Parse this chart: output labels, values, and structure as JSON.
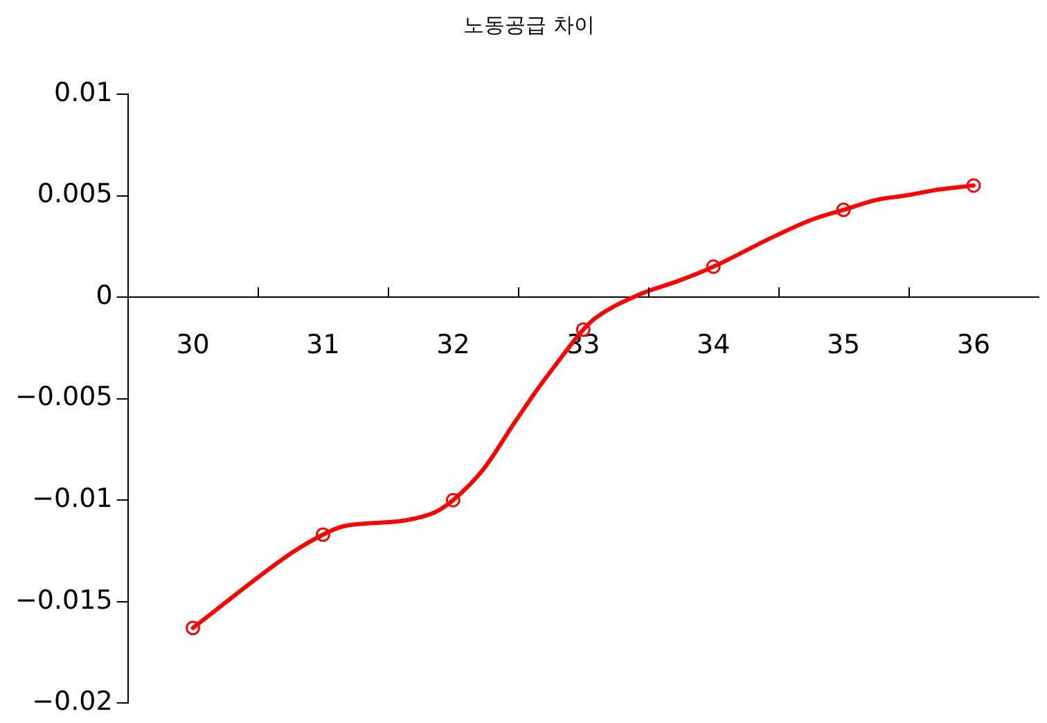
{
  "chart_data": {
    "type": "line",
    "title": "노동공급 차이",
    "xlim": [
      29.5,
      36.5
    ],
    "xticks": [
      30,
      {
        "value": 30.5,
        "label": null
      },
      31,
      {
        "value": 31.5,
        "label": null
      },
      32,
      {
        "value": 32.5,
        "label": null
      },
      33,
      {
        "value": 33.5,
        "label": null
      },
      34,
      {
        "value": 34.5,
        "label": null
      },
      35,
      {
        "value": 35.5,
        "label": null
      },
      36
    ],
    "ylim": [
      -0.02,
      0.01
    ],
    "yticks": [
      {
        "value": -0.02,
        "label": "−0.02"
      },
      {
        "value": -0.015,
        "label": "−0.015"
      },
      {
        "value": -0.01,
        "label": "−0.01"
      },
      {
        "value": -0.005,
        "label": "−0.005"
      },
      0,
      0.005,
      0.01
    ],
    "grid": false,
    "legend": false,
    "series": [
      {
        "marker": "none",
        "line_style": "solid",
        "color": "#ff0000",
        "x": [
          30,
          30.76,
          31,
          31.15,
          31.63,
          31.86,
          32,
          32.23,
          32.47,
          32.63,
          32.78,
          33,
          33.1,
          33.42,
          33.73,
          34,
          34.47,
          34.75,
          35,
          35.26,
          35.47,
          35.73,
          36
        ],
        "values": [
          -0.0163,
          -0.0126,
          -0.0117,
          -0.0113,
          -0.011,
          -0.0106,
          -0.01,
          -0.0085,
          -0.0062,
          -0.0047,
          -0.0034,
          -0.0016,
          -0.001,
          0.0001,
          0.0008,
          0.0015,
          0.003,
          0.0038,
          0.0043,
          0.0048,
          0.005,
          0.0053,
          0.0055
        ]
      },
      {
        "type": "scatter",
        "marker": "circle",
        "color": "#ff0000",
        "x": [
          30,
          31,
          32,
          33,
          34,
          35,
          36
        ],
        "values": [
          -0.0163,
          -0.0117,
          -0.01,
          -0.0016,
          0.0015,
          0.0043,
          0.0055
        ]
      }
    ]
  }
}
